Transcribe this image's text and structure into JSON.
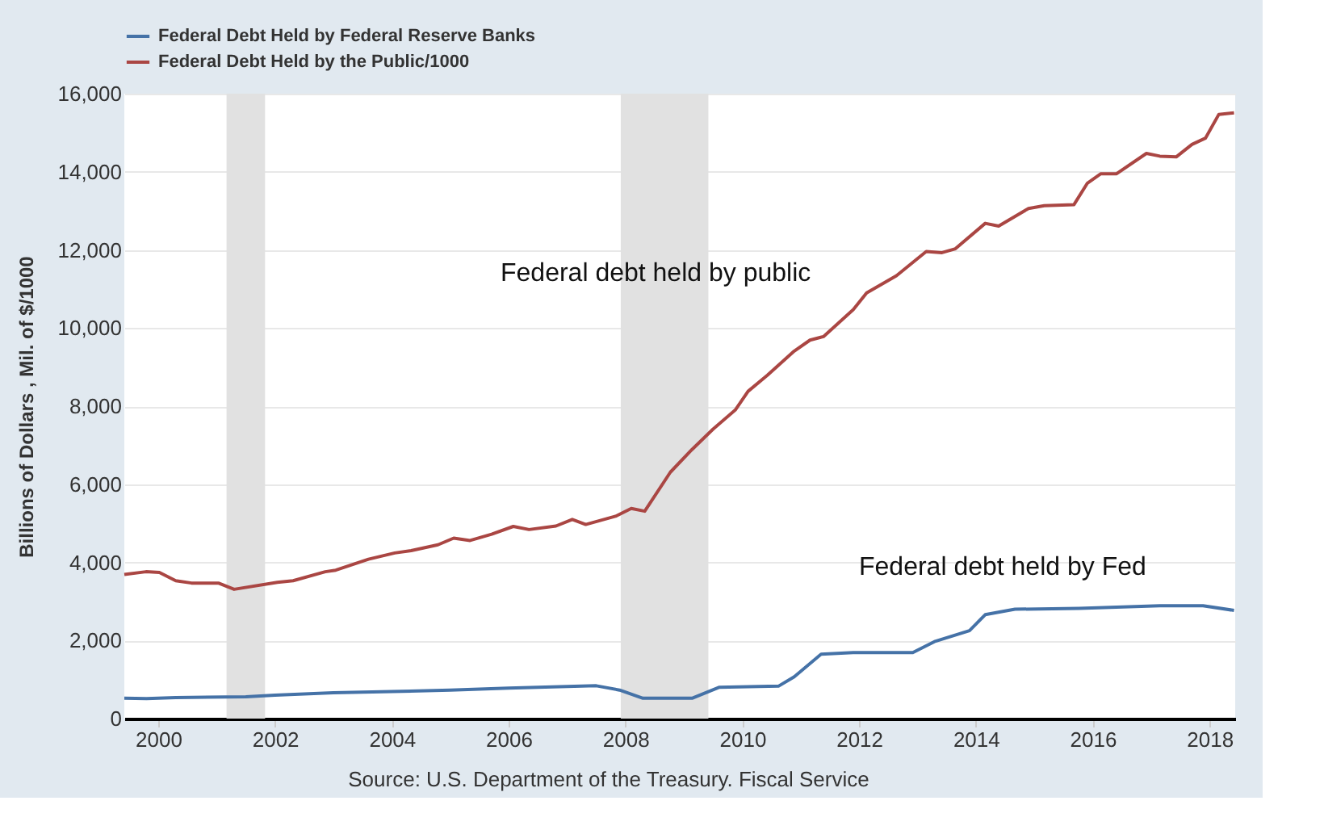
{
  "chart_data": {
    "type": "line",
    "ylabel": "Billions of Dollars , Mil. of $/1000",
    "xlim": [
      1999.42,
      2018.44
    ],
    "xticks": [
      2000,
      2002,
      2004,
      2006,
      2008,
      2010,
      2012,
      2014,
      2016,
      2018
    ],
    "ylim": [
      0,
      16000
    ],
    "yticks": [
      0,
      {
        "value": 2000,
        "label": "2,000"
      },
      {
        "value": 4000,
        "label": "4,000"
      },
      {
        "value": 6000,
        "label": "6,000"
      },
      {
        "value": 8000,
        "label": "8,000"
      },
      {
        "value": 10000,
        "label": "10,000"
      },
      {
        "value": 12000,
        "label": "12,000"
      },
      {
        "value": 14000,
        "label": "14,000"
      },
      {
        "value": 16000,
        "label": "16,000"
      }
    ],
    "grid": "y",
    "legend": "top left",
    "marker": "none",
    "line_style": "solid",
    "bands": [
      {
        "axis": "x",
        "from": 2001.17,
        "to": 2001.83,
        "label": null,
        "color": "#e1e1e1"
      },
      {
        "axis": "x",
        "from": 2007.92,
        "to": 2009.42,
        "label": null,
        "color": "#e1e1e1"
      }
    ],
    "annotations": [
      "Federal debt held by public",
      "Federal debt held by Fed",
      "Source: U.S. Department of the Treasury. Fiscal Service"
    ],
    "series": [
      {
        "name": "Federal Debt Held by Federal Reserve Banks",
        "color": "#4572a7",
        "x": [
          1999.42,
          1999.8,
          2000.3,
          2001.5,
          2002.0,
          2003.0,
          2004.0,
          2005.0,
          2006.0,
          2007.5,
          2007.9,
          2008.3,
          2009.0,
          2009.14,
          2009.6,
          2010.62,
          2010.89,
          2011.35,
          2011.9,
          2012.92,
          2013.29,
          2013.89,
          2014.16,
          2014.67,
          2015.77,
          2017.15,
          2017.89,
          2018.42
        ],
        "values": [
          520,
          510,
          540,
          560,
          600,
          660,
          690,
          730,
          780,
          840,
          730,
          520,
          520,
          520,
          800,
          830,
          1070,
          1650,
          1690,
          1690,
          1970,
          2250,
          2660,
          2800,
          2820,
          2890,
          2890,
          2770
        ]
      },
      {
        "name": "Federal Debt Held by the Public/1000",
        "color": "#aa4643",
        "x": [
          1999.42,
          1999.79,
          2000.02,
          2000.3,
          2000.57,
          2001.03,
          2001.3,
          2002.04,
          2002.31,
          2002.86,
          2003.04,
          2003.6,
          2004.05,
          2004.33,
          2004.79,
          2005.06,
          2005.34,
          2005.71,
          2006.08,
          2006.35,
          2006.81,
          2007.09,
          2007.32,
          2007.83,
          2008.1,
          2008.33,
          2008.77,
          2009.14,
          2009.5,
          2009.88,
          2010.1,
          2010.43,
          2010.89,
          2011.16,
          2011.39,
          2011.9,
          2012.13,
          2012.64,
          2013.15,
          2013.42,
          2013.65,
          2014.16,
          2014.39,
          2014.9,
          2015.17,
          2015.68,
          2015.91,
          2016.14,
          2016.41,
          2016.92,
          2017.15,
          2017.43,
          2017.7,
          2017.93,
          2018.16,
          2018.42
        ],
        "values": [
          3690,
          3760,
          3740,
          3530,
          3470,
          3470,
          3310,
          3490,
          3530,
          3760,
          3800,
          4080,
          4240,
          4300,
          4450,
          4620,
          4560,
          4720,
          4920,
          4840,
          4930,
          5100,
          4970,
          5180,
          5380,
          5310,
          6310,
          6890,
          7410,
          7900,
          8380,
          8790,
          9410,
          9690,
          9780,
          10470,
          10900,
          11340,
          11960,
          11930,
          12030,
          12680,
          12610,
          13060,
          13130,
          13160,
          13710,
          13950,
          13950,
          14470,
          14400,
          14380,
          14700,
          14860,
          15470,
          15510
        ]
      }
    ]
  }
}
